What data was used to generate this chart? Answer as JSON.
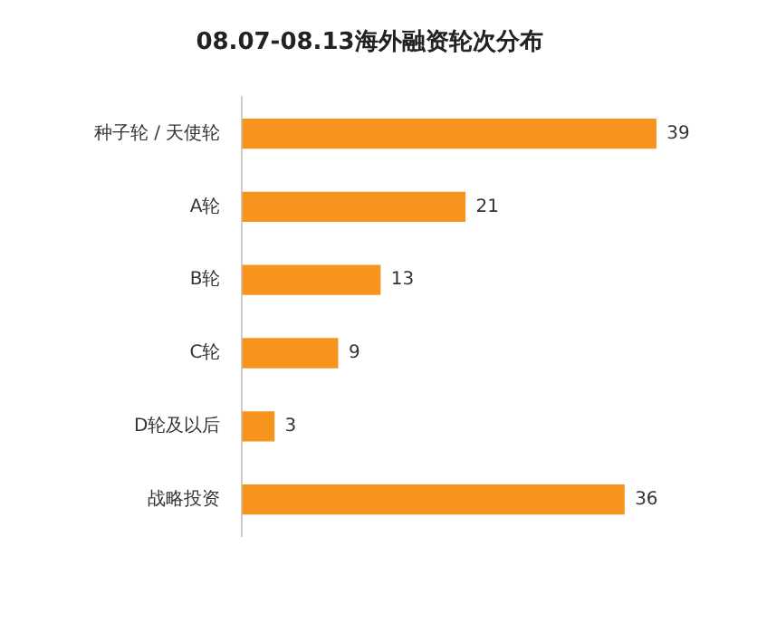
{
  "chart_data": {
    "type": "bar",
    "title": "08.07-08.13海外融资轮次分布",
    "orientation": "horizontal",
    "categories": [
      "种子轮 / 天使轮",
      "A轮",
      "B轮",
      "C轮",
      "D轮及以后",
      "战略投资"
    ],
    "values": [
      39,
      21,
      13,
      9,
      3,
      36
    ],
    "color": "#f7941d",
    "data_labels": true
  }
}
